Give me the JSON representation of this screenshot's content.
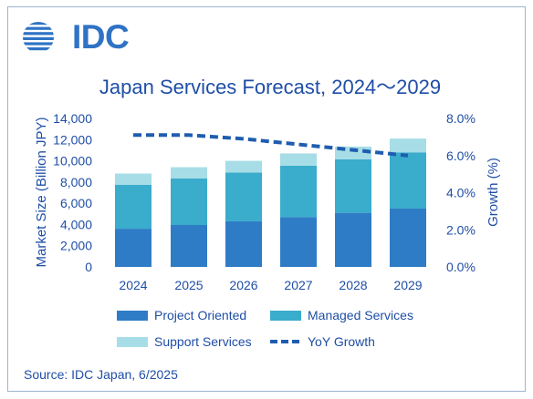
{
  "logo": {
    "text": "IDC"
  },
  "chart_data": {
    "type": "bar",
    "stacked": true,
    "title": "Japan Services Forecast, 2024〜2029",
    "categories": [
      "2024",
      "2025",
      "2026",
      "2027",
      "2028",
      "2029"
    ],
    "series": [
      {
        "name": "Project Oriented",
        "color": "#2f7cc6",
        "values": [
          3600,
          3950,
          4300,
          4700,
          5100,
          5500
        ]
      },
      {
        "name": "Managed Services",
        "color": "#3aaccc",
        "values": [
          4150,
          4400,
          4600,
          4850,
          5050,
          5300
        ]
      },
      {
        "name": "Support Services",
        "color": "#a6dde6",
        "values": [
          1050,
          1050,
          1100,
          1150,
          1200,
          1300
        ]
      }
    ],
    "line_series": [
      {
        "name": "YoY Growth",
        "color": "#1f5db0",
        "axis": "right",
        "values": [
          0.071,
          0.071,
          0.069,
          0.066,
          0.063,
          0.06
        ]
      }
    ],
    "ylabel": "Market Size (Billion JPY)",
    "ylim": [
      0,
      14000
    ],
    "yticks": [
      "14,000",
      "12,000",
      "10,000",
      "8,000",
      "6,000",
      "4,000",
      "2,000",
      "0"
    ],
    "y2label": "Growth (%)",
    "y2lim": [
      0,
      0.08
    ],
    "y2ticks": [
      "8.0%",
      "6.0%",
      "4.0%",
      "2.0%",
      "0.0%"
    ],
    "grid": false,
    "legend_position": "bottom",
    "legend": [
      {
        "name": "Project Oriented",
        "kind": "box",
        "color": "#2f7cc6"
      },
      {
        "name": "Managed Services",
        "kind": "box",
        "color": "#3aaccc"
      },
      {
        "name": "Support Services",
        "kind": "box",
        "color": "#a6dde6"
      },
      {
        "name": "YoY Growth",
        "kind": "dash",
        "color": "#1f5db0"
      }
    ]
  },
  "colors": {
    "text": "#1f4ea6",
    "accent": "#2f73c5"
  },
  "source": "Source: IDC Japan, 6/2025"
}
